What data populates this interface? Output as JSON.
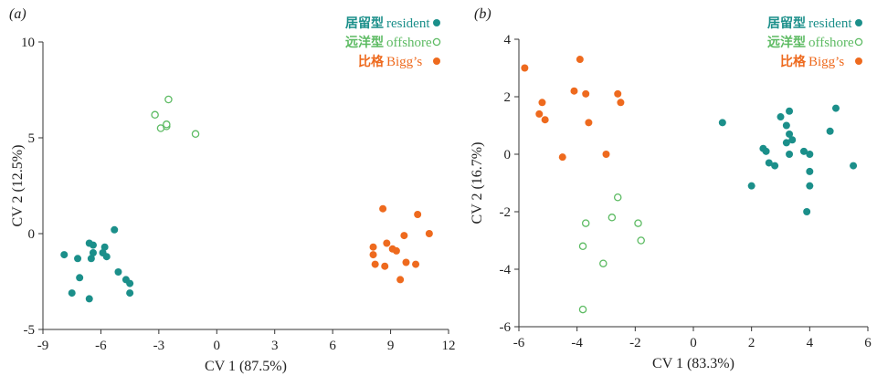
{
  "chart_data": [
    {
      "type": "scatter",
      "panel_label": "(a)",
      "xlabel": "CV 1 (87.5%)",
      "ylabel": "CV 2 (12.5%)",
      "xlim": [
        -9,
        12
      ],
      "ylim": [
        -5,
        10
      ],
      "xticks": [
        -9,
        -6,
        -3,
        0,
        3,
        6,
        9,
        12
      ],
      "yticks": [
        -5,
        0,
        5,
        10
      ],
      "grid": false,
      "legend_position": "top-right",
      "series": [
        {
          "name_cn": "居留型",
          "name_en": "resident",
          "color": "#1b8f8a",
          "marker": "filled-circle",
          "points": [
            [
              -7.9,
              -1.1
            ],
            [
              -7.5,
              -3.1
            ],
            [
              -7.2,
              -1.3
            ],
            [
              -7.1,
              -2.3
            ],
            [
              -6.6,
              -3.4
            ],
            [
              -6.6,
              -0.5
            ],
            [
              -6.5,
              -1.3
            ],
            [
              -6.4,
              -0.6
            ],
            [
              -6.4,
              -1.0
            ],
            [
              -5.9,
              -1.0
            ],
            [
              -5.8,
              -0.7
            ],
            [
              -5.7,
              -1.2
            ],
            [
              -5.3,
              0.2
            ],
            [
              -5.1,
              -2.0
            ],
            [
              -4.7,
              -2.4
            ],
            [
              -4.5,
              -2.6
            ],
            [
              -4.5,
              -3.1
            ]
          ]
        },
        {
          "name_cn": "远洋型",
          "name_en": "offshore",
          "color": "#5dbb63",
          "marker": "open-circle",
          "points": [
            [
              -3.2,
              6.2
            ],
            [
              -2.9,
              5.5
            ],
            [
              -2.6,
              5.6
            ],
            [
              -2.6,
              5.7
            ],
            [
              -2.5,
              7.0
            ],
            [
              -1.1,
              5.2
            ]
          ]
        },
        {
          "name_cn": "比格",
          "name_en": "Bigg’s",
          "color": "#ee6a1e",
          "marker": "filled-circle",
          "points": [
            [
              8.1,
              -0.7
            ],
            [
              8.1,
              -1.1
            ],
            [
              8.2,
              -1.6
            ],
            [
              8.6,
              1.3
            ],
            [
              8.7,
              -1.7
            ],
            [
              8.8,
              -0.5
            ],
            [
              9.1,
              -0.8
            ],
            [
              9.3,
              -0.9
            ],
            [
              9.5,
              -2.4
            ],
            [
              9.7,
              -0.1
            ],
            [
              9.8,
              -1.5
            ],
            [
              10.3,
              -1.6
            ],
            [
              10.4,
              1.0
            ],
            [
              11.0,
              0.0
            ]
          ]
        }
      ]
    },
    {
      "type": "scatter",
      "panel_label": "(b)",
      "xlabel": "CV 1 (83.3%)",
      "ylabel": "CV 2 (16.7%)",
      "xlim": [
        -6,
        6
      ],
      "ylim": [
        -6,
        4
      ],
      "xticks": [
        -6,
        -4,
        -2,
        0,
        2,
        4,
        6
      ],
      "yticks": [
        -6,
        -4,
        -2,
        0,
        2,
        4
      ],
      "grid": false,
      "legend_position": "top-right",
      "series": [
        {
          "name_cn": "居留型",
          "name_en": "resident",
          "color": "#1b8f8a",
          "marker": "filled-circle",
          "points": [
            [
              1.0,
              1.1
            ],
            [
              2.0,
              -1.1
            ],
            [
              2.4,
              0.2
            ],
            [
              2.5,
              0.1
            ],
            [
              2.6,
              -0.3
            ],
            [
              2.8,
              -0.4
            ],
            [
              3.0,
              1.3
            ],
            [
              3.2,
              1.0
            ],
            [
              3.2,
              0.4
            ],
            [
              3.3,
              1.5
            ],
            [
              3.3,
              0.7
            ],
            [
              3.3,
              0.0
            ],
            [
              3.4,
              0.5
            ],
            [
              3.8,
              0.1
            ],
            [
              3.9,
              -2.0
            ],
            [
              4.0,
              0.0
            ],
            [
              4.0,
              -0.6
            ],
            [
              4.0,
              -1.1
            ],
            [
              4.7,
              0.8
            ],
            [
              4.9,
              1.6
            ],
            [
              5.5,
              -0.4
            ]
          ]
        },
        {
          "name_cn": "远洋型",
          "name_en": "offshore",
          "color": "#5dbb63",
          "marker": "open-circle",
          "points": [
            [
              -3.8,
              -5.4
            ],
            [
              -3.8,
              -3.2
            ],
            [
              -3.7,
              -2.4
            ],
            [
              -3.1,
              -3.8
            ],
            [
              -2.8,
              -2.2
            ],
            [
              -2.6,
              -1.5
            ],
            [
              -1.9,
              -2.4
            ],
            [
              -1.8,
              -3.0
            ]
          ]
        },
        {
          "name_cn": "比格",
          "name_en": "Bigg’s",
          "color": "#ee6a1e",
          "marker": "filled-circle",
          "points": [
            [
              -5.8,
              3.0
            ],
            [
              -5.3,
              1.4
            ],
            [
              -5.2,
              1.8
            ],
            [
              -5.1,
              1.2
            ],
            [
              -4.5,
              -0.1
            ],
            [
              -4.1,
              2.2
            ],
            [
              -3.9,
              3.3
            ],
            [
              -3.7,
              2.1
            ],
            [
              -3.6,
              1.1
            ],
            [
              -3.0,
              0.0
            ],
            [
              -2.6,
              2.1
            ],
            [
              -2.5,
              1.8
            ]
          ]
        }
      ]
    }
  ]
}
